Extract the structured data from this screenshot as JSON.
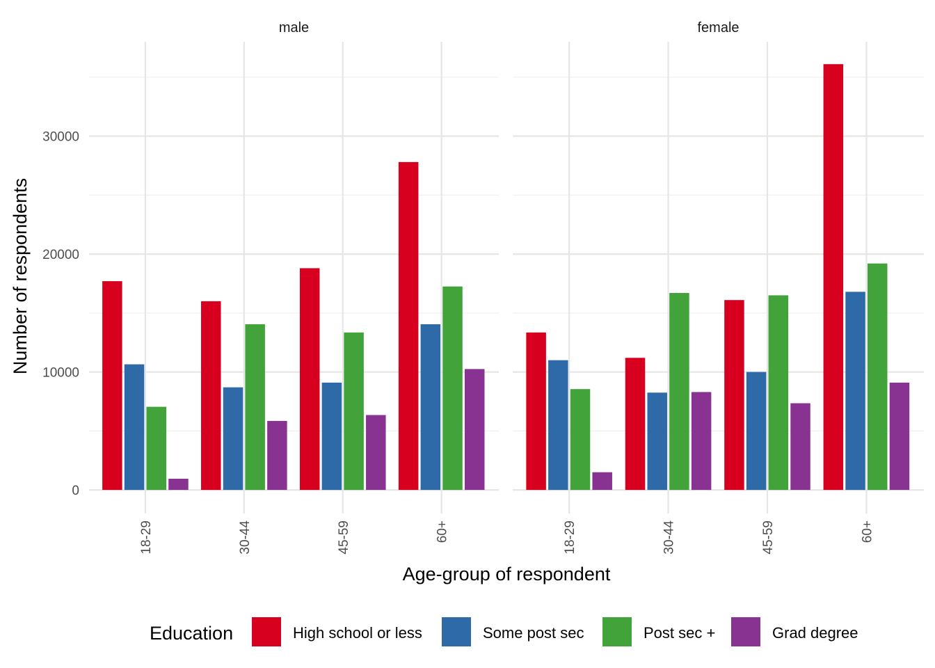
{
  "chart_data": {
    "type": "bar",
    "facets": [
      "male",
      "female"
    ],
    "categories": [
      "18-29",
      "30-44",
      "45-59",
      "60+"
    ],
    "series": [
      {
        "name": "High school or less",
        "color": "#d7001f",
        "values": {
          "male": [
            17700,
            16000,
            18800,
            27800
          ],
          "female": [
            13350,
            11200,
            16100,
            36100
          ]
        }
      },
      {
        "name": "Some post sec",
        "color": "#2e69a8",
        "values": {
          "male": [
            10650,
            8700,
            9100,
            14050
          ],
          "female": [
            11000,
            8250,
            10000,
            16800
          ]
        }
      },
      {
        "name": "Post sec +",
        "color": "#42a33a",
        "values": {
          "male": [
            7050,
            14050,
            13350,
            17250
          ],
          "female": [
            8550,
            16700,
            16500,
            19200
          ]
        }
      },
      {
        "name": "Grad degree",
        "color": "#883391",
        "values": {
          "male": [
            950,
            5850,
            6350,
            10250
          ],
          "female": [
            1500,
            8300,
            7350,
            9100
          ]
        }
      }
    ],
    "yticks": [
      0,
      10000,
      20000,
      30000
    ],
    "ylim": [
      -2000,
      38000
    ],
    "xlabel": "Age-group of respondent",
    "ylabel": "Number of respondents",
    "legend_title": "Education",
    "legend_position": "bottom",
    "grid": true
  }
}
